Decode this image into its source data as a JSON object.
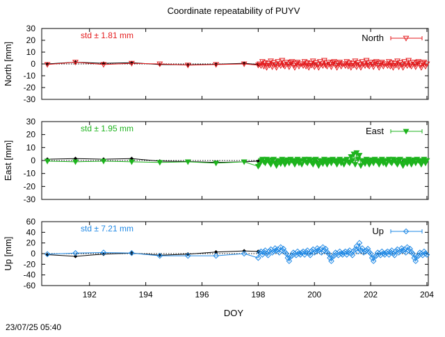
{
  "title": "Coordinate repeatability of PUYV",
  "xlabel": "DOY",
  "timestamp": "23/07/25 05:40",
  "colors": {
    "north": "#e41a1c",
    "east": "#1db31d",
    "up": "#1e88e5",
    "reference": "#000000"
  },
  "chart_data": [
    {
      "type": "line",
      "name": "north",
      "ylabel": "North [mm]",
      "legend": "North",
      "legend_position": "top-right",
      "std_label": "std ± 1.81 mm",
      "xlim": [
        190.3,
        204.05
      ],
      "ylim": [
        -30,
        30
      ],
      "yticks": [
        -30,
        -20,
        -10,
        0,
        10,
        20,
        30
      ],
      "xticks": [
        192,
        194,
        196,
        198,
        200,
        202,
        204
      ],
      "reference": {
        "x": [
          190.5,
          191.5,
          192.5,
          193.5,
          194.5,
          195.5,
          196.5,
          197.5,
          198.0
        ],
        "y": [
          0.0,
          1.5,
          0.5,
          1.0,
          -0.5,
          -0.8,
          -0.3,
          0.5,
          -0.5
        ]
      },
      "series": {
        "sparse": {
          "x": [
            190.5,
            191.5,
            192.5,
            193.5,
            194.5,
            195.5,
            196.5,
            197.5,
            198.0
          ],
          "y": [
            -0.5,
            1.5,
            -0.5,
            0.5,
            0.0,
            -1.0,
            -0.5,
            0.0,
            -1.0
          ]
        },
        "dense": {
          "x_start": 198.05,
          "x_end": 204.0,
          "step": 0.05,
          "y_base": [
            0,
            -1.5,
            2,
            -2,
            1,
            -3,
            0.5,
            -1,
            2.5,
            -2.5,
            1,
            -0.5,
            -3,
            2,
            0,
            -1.5,
            3,
            -1,
            -2,
            1.5,
            0,
            -2.5,
            1,
            2,
            -1,
            -3,
            0.5,
            1.5,
            -2,
            0
          ]
        }
      }
    },
    {
      "type": "line",
      "name": "east",
      "ylabel": "East [mm]",
      "legend": "East",
      "legend_position": "top-right",
      "std_label": "std ± 1.95 mm",
      "xlim": [
        190.3,
        204.05
      ],
      "ylim": [
        -30,
        30
      ],
      "yticks": [
        -30,
        -20,
        -10,
        0,
        10,
        20,
        30
      ],
      "xticks": [
        192,
        194,
        196,
        198,
        200,
        202,
        204
      ],
      "reference": {
        "x": [
          190.5,
          191.5,
          192.5,
          193.5,
          194.5,
          195.5,
          196.5,
          197.5,
          198.0
        ],
        "y": [
          1.0,
          1.5,
          1.0,
          1.5,
          -0.5,
          -0.8,
          -1.5,
          -1.0,
          -0.5
        ]
      },
      "series": {
        "sparse": {
          "x": [
            190.5,
            191.5,
            192.5,
            193.5,
            194.5,
            195.5,
            196.5,
            197.5,
            198.0
          ],
          "y": [
            -0.5,
            -1.0,
            -0.5,
            -1.0,
            -1.5,
            -1.0,
            -2.0,
            -1.0,
            -4.5
          ]
        },
        "dense": {
          "x_start": 198.05,
          "x_end": 204.0,
          "step": 0.05,
          "y_base": [
            -3,
            0,
            1,
            -1,
            -2,
            1,
            0,
            -1.5,
            -3,
            0.5,
            1,
            -2,
            -4,
            0,
            -1,
            -2.5,
            1,
            0,
            -3,
            -1,
            0.5,
            -2,
            1,
            0,
            -1,
            -3,
            0,
            1,
            -2,
            0
          ]
        },
        "spike": {
          "x": [
            201.3,
            201.4,
            201.5,
            201.6
          ],
          "y": [
            3.0,
            5.0,
            6.0,
            4.0
          ]
        }
      }
    },
    {
      "type": "line",
      "name": "up",
      "ylabel": "Up [mm]",
      "legend": "Up",
      "legend_position": "top-right",
      "std_label": "std ± 7.21 mm",
      "xlim": [
        190.3,
        204.05
      ],
      "ylim": [
        -60,
        60
      ],
      "yticks": [
        -60,
        -40,
        -20,
        0,
        20,
        40,
        60
      ],
      "xticks": [
        192,
        194,
        196,
        198,
        200,
        202,
        204
      ],
      "reference": {
        "x": [
          190.5,
          191.5,
          192.5,
          193.5,
          194.5,
          195.5,
          196.5,
          197.5,
          198.0
        ],
        "y": [
          -2.0,
          -5.0,
          -1.0,
          1.0,
          -3.0,
          -1.0,
          3.0,
          5.0,
          4.0
        ]
      },
      "series": {
        "sparse": {
          "x": [
            190.5,
            191.5,
            192.5,
            193.5,
            194.5,
            195.5,
            196.5,
            197.5,
            198.0
          ],
          "y": [
            -1.0,
            1.0,
            2.0,
            1.0,
            -4.0,
            -4.0,
            -4.0,
            0.0,
            -8.0
          ]
        },
        "dense": {
          "x_start": 198.05,
          "x_end": 204.0,
          "step": 0.05,
          "y_base": [
            2,
            4,
            -2,
            3,
            6,
            0,
            -3,
            5,
            8,
            2,
            4,
            10,
            6,
            8,
            2,
            12,
            6,
            9,
            3,
            0,
            -8,
            -14,
            -6,
            -4,
            2,
            0,
            -3,
            4,
            0,
            -2
          ]
        },
        "spike": {
          "x": [
            201.5,
            201.6,
            201.7,
            201.8
          ],
          "y": [
            14.0,
            20.0,
            10.0,
            4.0
          ]
        }
      }
    }
  ]
}
